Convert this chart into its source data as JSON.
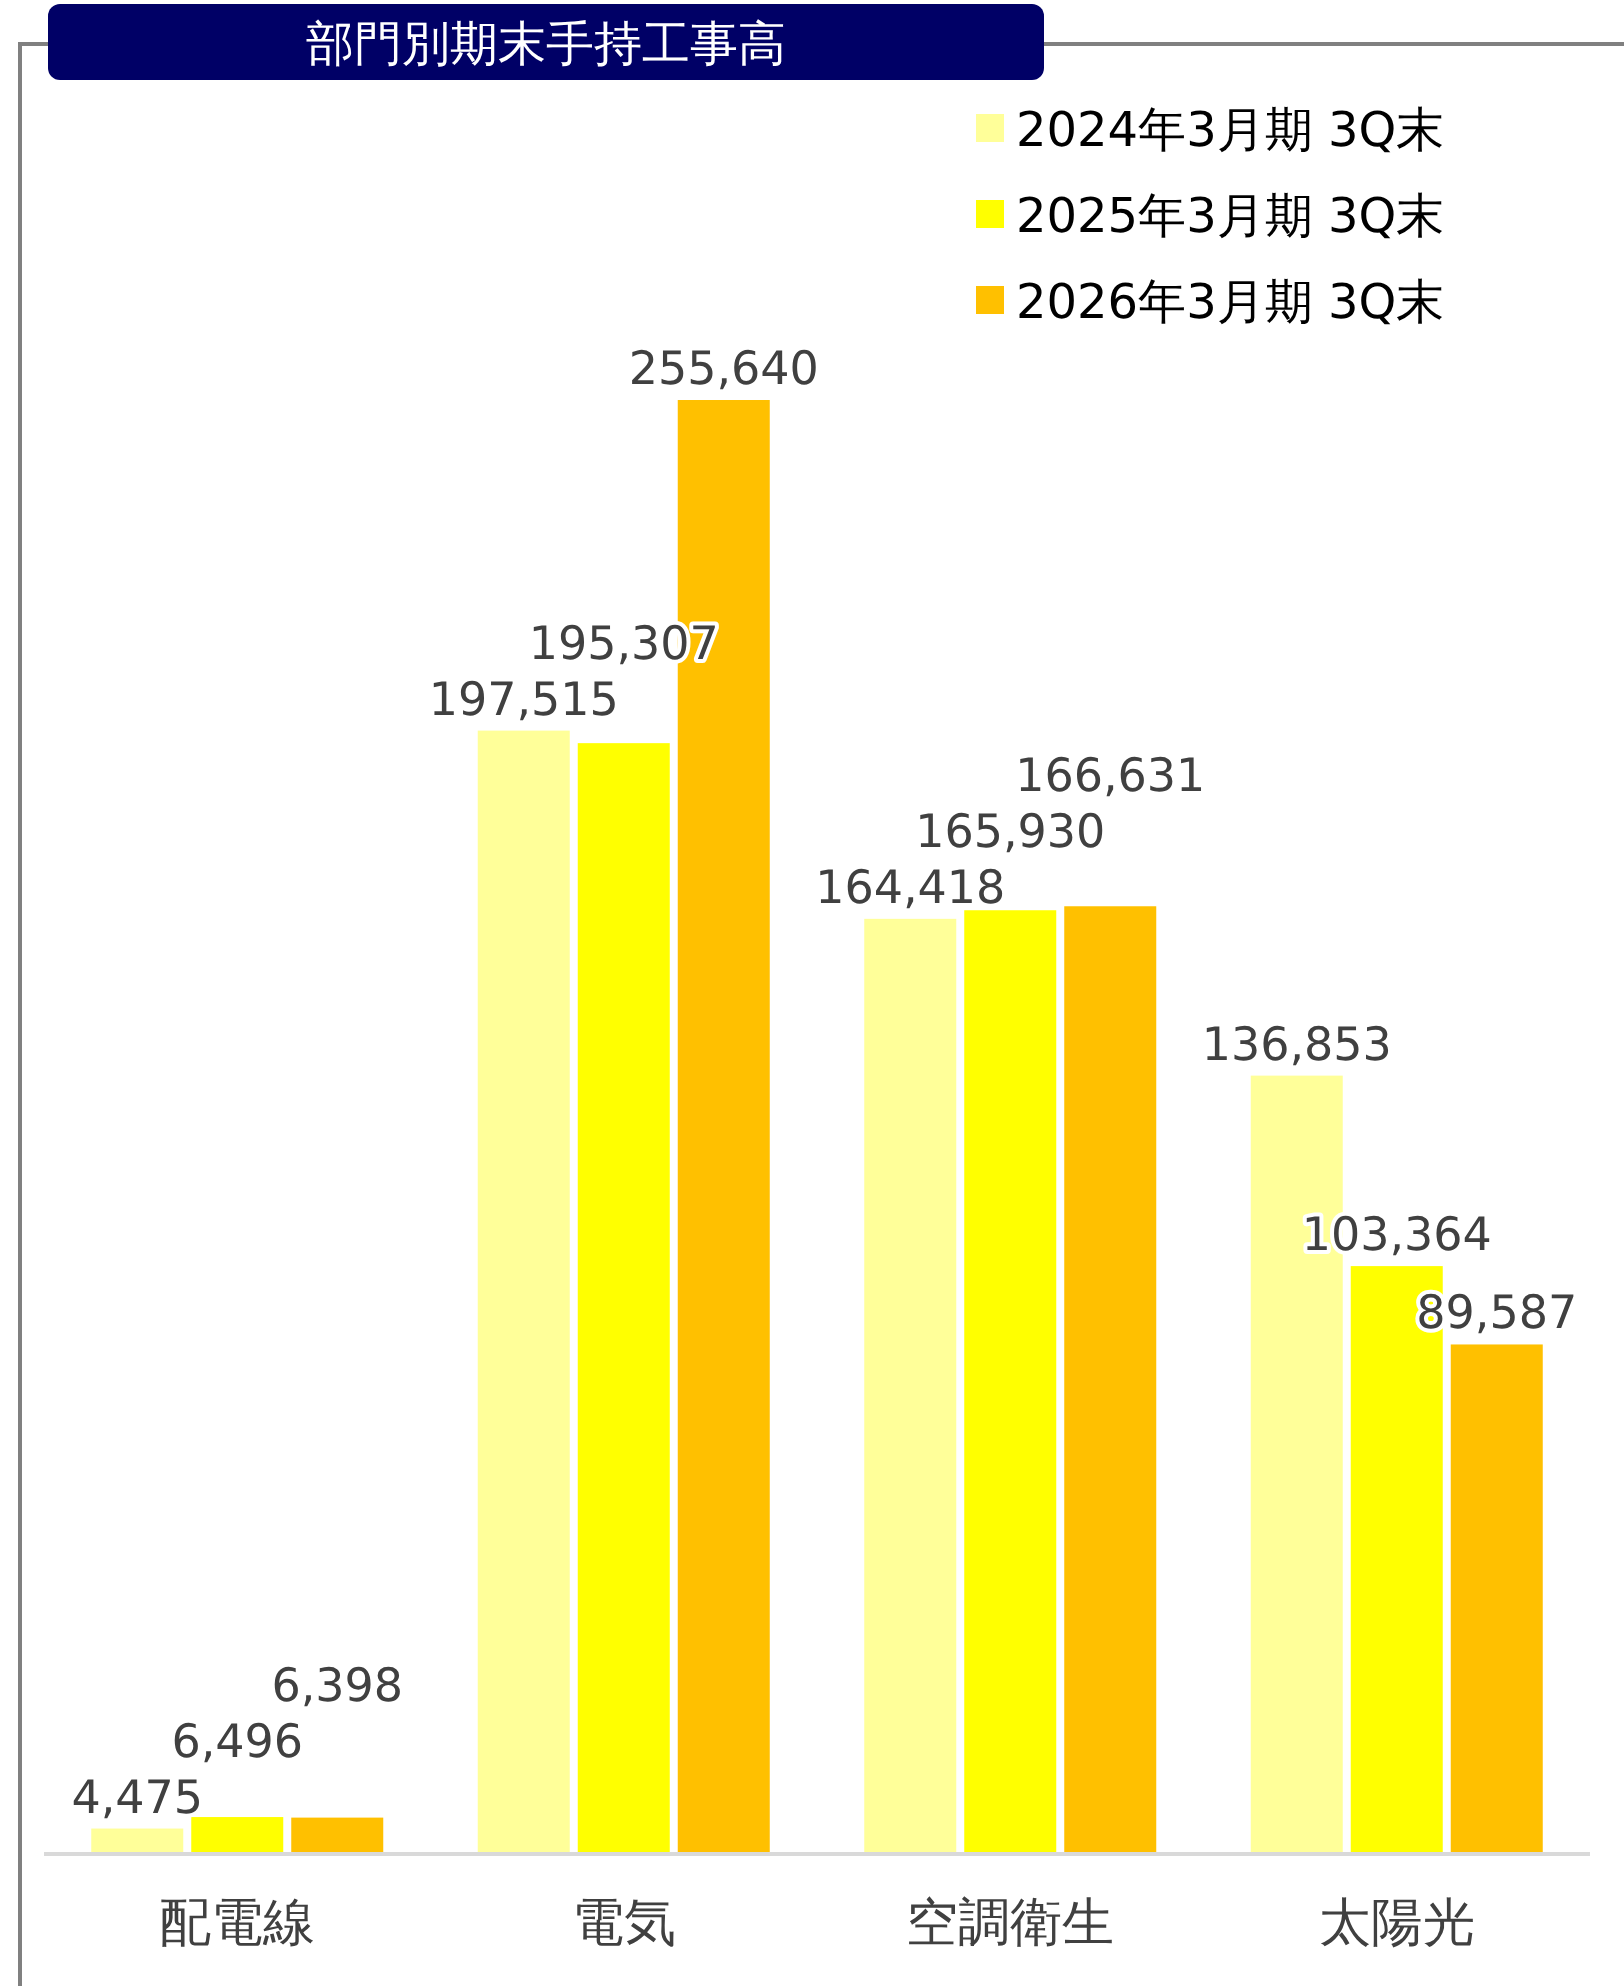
{
  "chart_data": {
    "type": "bar",
    "title": "部門別期末手持工事高",
    "categories": [
      "配電線",
      "電気",
      "空調衛生",
      "太陽光"
    ],
    "series": [
      {
        "name": "2024年3月期 3Q末",
        "color": "#ffff99",
        "values": [
          4475,
          197515,
          164418,
          136853
        ],
        "value_labels": [
          "4,475",
          "197,515",
          "164,418",
          "136,853"
        ]
      },
      {
        "name": "2025年3月期 3Q末",
        "color": "#ffff00",
        "values": [
          6496,
          195307,
          165930,
          103364
        ],
        "value_labels": [
          "6,496",
          "195,307",
          "165,930",
          "103,364"
        ]
      },
      {
        "name": "2026年3月期 3Q末",
        "color": "#ffc000",
        "values": [
          6398,
          255640,
          166631,
          89587
        ],
        "value_labels": [
          "6,398",
          "255,640",
          "166,631",
          "89,587"
        ]
      }
    ],
    "legend": "top right",
    "grid": false
  }
}
